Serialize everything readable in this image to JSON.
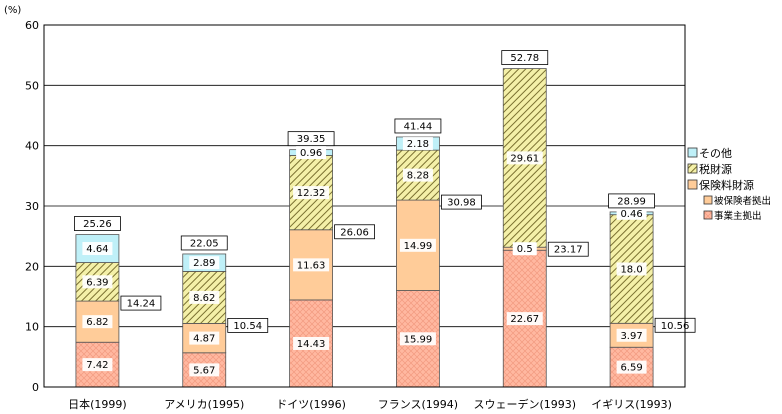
{
  "chart_data": {
    "type": "bar",
    "stacked": true,
    "unit_label": "(%)",
    "ylim": [
      0,
      60
    ],
    "yticks": [
      0,
      10,
      20,
      30,
      40,
      50,
      60
    ],
    "grid": true,
    "legend_position": "right",
    "categories": [
      "日本(1999)",
      "アメリカ(1995)",
      "ドイツ(1996)",
      "フランス(1994)",
      "スウェーデン(1993)",
      "イギリス(1993)"
    ],
    "series": [
      {
        "name": "事業主拠出",
        "values": [
          7.42,
          5.67,
          14.43,
          15.99,
          22.67,
          6.59
        ],
        "labels": [
          "7.42",
          "5.67",
          "14.43",
          "15.99",
          "22.67",
          "6.59"
        ]
      },
      {
        "name": "被保険者拠出",
        "values": [
          6.82,
          4.87,
          11.63,
          14.99,
          0.5,
          3.97
        ],
        "labels": [
          "6.82",
          "4.87",
          "11.63",
          "14.99",
          "0.5",
          "3.97"
        ]
      },
      {
        "name": "税財源",
        "values": [
          6.39,
          8.62,
          12.32,
          8.28,
          29.61,
          18.0
        ],
        "labels": [
          "6.39",
          "8.62",
          "12.32",
          "8.28",
          "29.61",
          "18.0"
        ]
      },
      {
        "name": "その他",
        "values": [
          4.64,
          2.89,
          0.96,
          2.18,
          0.0,
          0.46
        ],
        "labels": [
          "4.64",
          "2.89",
          "0.96",
          "2.18",
          "",
          "0.46"
        ]
      }
    ],
    "totals": [
      "25.26",
      "22.05",
      "39.35",
      "41.44",
      "52.78",
      "28.99"
    ],
    "insurance_subtotals": [
      "14.24",
      "10.54",
      "26.06",
      "30.98",
      "23.17",
      "10.56"
    ],
    "legend": {
      "group_label": "保険料財源",
      "entries": [
        "その他",
        "税財源",
        "保険料財源",
        "被保険者拠出",
        "事業主拠出"
      ]
    },
    "colors": {
      "employer": "#ffb8a0",
      "insured": "#ffcc99",
      "tax": "#f4f0a8",
      "tax_hatch": "#7a7030",
      "other": "#bff0f8",
      "bar_border": "#555555",
      "grid": "#000000"
    }
  }
}
